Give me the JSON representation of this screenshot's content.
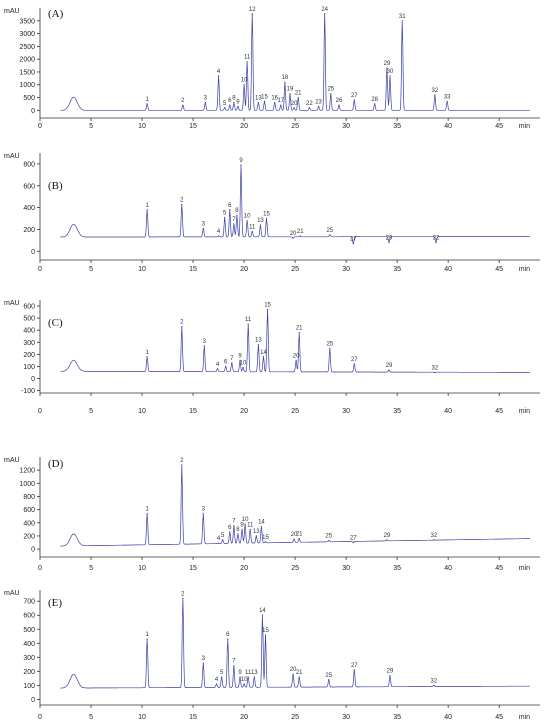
{
  "chart_data": [
    {
      "panel": "(A)",
      "type": "line",
      "ylabel": "mAU",
      "xlabel": "min",
      "xlim": [
        0,
        49
      ],
      "ylim": [
        -300,
        4000
      ],
      "xticks": [
        0,
        5,
        10,
        15,
        20,
        25,
        30,
        35,
        40,
        45
      ],
      "yticks": [
        0,
        500,
        1000,
        1500,
        2000,
        2500,
        3000,
        3500
      ],
      "baseline": 0,
      "baseline_slope": 0,
      "peaks": [
        {
          "label": "1",
          "x": 10.5,
          "y": 250
        },
        {
          "label": "2",
          "x": 14.0,
          "y": 200
        },
        {
          "label": "3",
          "x": 16.2,
          "y": 300
        },
        {
          "label": "4",
          "x": 17.5,
          "y": 1350
        },
        {
          "label": "5",
          "x": 18.1,
          "y": 100
        },
        {
          "label": "6",
          "x": 18.6,
          "y": 200
        },
        {
          "label": "8",
          "x": 19.0,
          "y": 300
        },
        {
          "label": "9",
          "x": 19.4,
          "y": 150
        },
        {
          "label": "10",
          "x": 20.0,
          "y": 1000
        },
        {
          "label": "11",
          "x": 20.3,
          "y": 1900
        },
        {
          "label": "12",
          "x": 20.8,
          "y": 3800
        },
        {
          "label": "13",
          "x": 21.4,
          "y": 300
        },
        {
          "label": "15",
          "x": 22.0,
          "y": 350
        },
        {
          "label": "16",
          "x": 23.0,
          "y": 300
        },
        {
          "label": "17",
          "x": 23.6,
          "y": 200
        },
        {
          "label": "18",
          "x": 24.0,
          "y": 1100
        },
        {
          "label": "19",
          "x": 24.5,
          "y": 650
        },
        {
          "label": "20",
          "x": 24.9,
          "y": 100
        },
        {
          "label": "21",
          "x": 25.3,
          "y": 500
        },
        {
          "label": "22",
          "x": 26.4,
          "y": 100
        },
        {
          "label": "23",
          "x": 27.3,
          "y": 150
        },
        {
          "label": "24",
          "x": 27.9,
          "y": 3800
        },
        {
          "label": "25",
          "x": 28.5,
          "y": 650
        },
        {
          "label": "26",
          "x": 29.3,
          "y": 200
        },
        {
          "label": "27",
          "x": 30.8,
          "y": 400
        },
        {
          "label": "28",
          "x": 32.8,
          "y": 250
        },
        {
          "label": "29",
          "x": 34.0,
          "y": 1650
        },
        {
          "label": "30",
          "x": 34.3,
          "y": 1350
        },
        {
          "label": "31",
          "x": 35.5,
          "y": 3500
        },
        {
          "label": "32",
          "x": 38.7,
          "y": 600
        },
        {
          "label": "33",
          "x": 39.9,
          "y": 350
        }
      ]
    },
    {
      "panel": "(B)",
      "type": "line",
      "ylabel": "mAU",
      "xlabel": "min",
      "xlim": [
        0,
        49
      ],
      "ylim": [
        -80,
        900
      ],
      "xticks": [
        0,
        5,
        10,
        15,
        20,
        25,
        30,
        35,
        40,
        45
      ],
      "yticks": [
        0,
        200,
        400,
        600,
        800
      ],
      "baseline": 130,
      "baseline_slope": 0.1,
      "peaks": [
        {
          "label": "1",
          "x": 10.5,
          "y": 380
        },
        {
          "label": "2",
          "x": 13.9,
          "y": 430
        },
        {
          "label": "3",
          "x": 16.0,
          "y": 210
        },
        {
          "label": "4",
          "x": 17.5,
          "y": 140
        },
        {
          "label": "5",
          "x": 18.1,
          "y": 310
        },
        {
          "label": "6",
          "x": 18.6,
          "y": 380
        },
        {
          "label": "7",
          "x": 19.0,
          "y": 250
        },
        {
          "label": "8",
          "x": 19.3,
          "y": 330
        },
        {
          "label": "9",
          "x": 19.7,
          "y": 790
        },
        {
          "label": "10",
          "x": 20.3,
          "y": 280
        },
        {
          "label": "11",
          "x": 20.8,
          "y": 180
        },
        {
          "label": "13",
          "x": 21.6,
          "y": 240
        },
        {
          "label": "15",
          "x": 22.2,
          "y": 300
        },
        {
          "label": "20",
          "x": 24.8,
          "y": 120
        },
        {
          "label": "21",
          "x": 25.5,
          "y": 140
        },
        {
          "label": "25",
          "x": 28.4,
          "y": 150
        },
        {
          "label": "27",
          "x": 30.7,
          "y": 70
        },
        {
          "label": "29",
          "x": 34.2,
          "y": 80
        },
        {
          "label": "32",
          "x": 38.8,
          "y": 80
        }
      ]
    },
    {
      "panel": "(C)",
      "type": "line",
      "ylabel": "mAU",
      "xlabel": "min",
      "xlim": [
        0,
        49
      ],
      "ylim": [
        -120,
        650
      ],
      "xticks": [
        0,
        5,
        10,
        15,
        20,
        25,
        30,
        35,
        40,
        45
      ],
      "yticks": [
        -100,
        0,
        100,
        200,
        300,
        400,
        500,
        600
      ],
      "baseline": 60,
      "baseline_slope": -0.2,
      "peaks": [
        {
          "label": "1",
          "x": 10.5,
          "y": 180
        },
        {
          "label": "2",
          "x": 13.9,
          "y": 430
        },
        {
          "label": "3",
          "x": 16.1,
          "y": 270
        },
        {
          "label": "4",
          "x": 17.4,
          "y": 80
        },
        {
          "label": "6",
          "x": 18.2,
          "y": 100
        },
        {
          "label": "7",
          "x": 18.8,
          "y": 130
        },
        {
          "label": "9",
          "x": 19.6,
          "y": 150
        },
        {
          "label": "10",
          "x": 19.9,
          "y": 90
        },
        {
          "label": "11",
          "x": 20.4,
          "y": 450
        },
        {
          "label": "13",
          "x": 21.4,
          "y": 280
        },
        {
          "label": "14",
          "x": 21.9,
          "y": 180
        },
        {
          "label": "15",
          "x": 22.3,
          "y": 570
        },
        {
          "label": "20",
          "x": 25.1,
          "y": 150
        },
        {
          "label": "21",
          "x": 25.4,
          "y": 380
        },
        {
          "label": "25",
          "x": 28.4,
          "y": 250
        },
        {
          "label": "27",
          "x": 30.8,
          "y": 120
        },
        {
          "label": "29",
          "x": 34.2,
          "y": 70
        },
        {
          "label": "32",
          "x": 38.7,
          "y": 50
        }
      ]
    },
    {
      "panel": "(D)",
      "type": "line",
      "ylabel": "mAU",
      "xlabel": "min",
      "xlim": [
        0,
        49
      ],
      "ylim": [
        -120,
        1400
      ],
      "xticks": [
        0,
        5,
        10,
        15,
        20,
        25,
        30,
        35,
        40,
        45
      ],
      "yticks": [
        0,
        200,
        400,
        600,
        800,
        1000,
        1200
      ],
      "baseline": 40,
      "baseline_slope": 2.5,
      "peaks": [
        {
          "label": "1",
          "x": 10.5,
          "y": 540
        },
        {
          "label": "2",
          "x": 13.9,
          "y": 1280
        },
        {
          "label": "3",
          "x": 16.0,
          "y": 540
        },
        {
          "label": "4",
          "x": 17.5,
          "y": 90
        },
        {
          "label": "5",
          "x": 17.9,
          "y": 140
        },
        {
          "label": "6",
          "x": 18.6,
          "y": 260
        },
        {
          "label": "7",
          "x": 19.0,
          "y": 360
        },
        {
          "label": "8",
          "x": 19.4,
          "y": 230
        },
        {
          "label": "9",
          "x": 19.8,
          "y": 300
        },
        {
          "label": "10",
          "x": 20.1,
          "y": 380
        },
        {
          "label": "11",
          "x": 20.6,
          "y": 300
        },
        {
          "label": "13",
          "x": 21.2,
          "y": 200
        },
        {
          "label": "14",
          "x": 21.7,
          "y": 340
        },
        {
          "label": "15",
          "x": 22.1,
          "y": 110
        },
        {
          "label": "20",
          "x": 24.9,
          "y": 150
        },
        {
          "label": "21",
          "x": 25.4,
          "y": 160
        },
        {
          "label": "25",
          "x": 28.3,
          "y": 130
        },
        {
          "label": "27",
          "x": 30.7,
          "y": 100
        },
        {
          "label": "29",
          "x": 34.0,
          "y": 140
        },
        {
          "label": "32",
          "x": 38.6,
          "y": 140
        }
      ]
    },
    {
      "panel": "(E)",
      "type": "line",
      "ylabel": "mAU",
      "xlabel": "min",
      "xlim": [
        0,
        49
      ],
      "ylim": [
        -40,
        780
      ],
      "xticks": [
        0,
        5,
        10,
        15,
        20,
        25,
        30,
        35,
        40,
        45
      ],
      "yticks": [
        0,
        100,
        200,
        300,
        400,
        500,
        600,
        700
      ],
      "baseline": 80,
      "baseline_slope": 0.3,
      "peaks": [
        {
          "label": "1",
          "x": 10.5,
          "y": 430
        },
        {
          "label": "2",
          "x": 14.0,
          "y": 720
        },
        {
          "label": "3",
          "x": 16.0,
          "y": 260
        },
        {
          "label": "4",
          "x": 17.3,
          "y": 110
        },
        {
          "label": "5",
          "x": 17.8,
          "y": 160
        },
        {
          "label": "6",
          "x": 18.4,
          "y": 430
        },
        {
          "label": "7",
          "x": 19.0,
          "y": 240
        },
        {
          "label": "9",
          "x": 19.6,
          "y": 160
        },
        {
          "label": "10",
          "x": 20.0,
          "y": 110
        },
        {
          "label": "11",
          "x": 20.4,
          "y": 160
        },
        {
          "label": "13",
          "x": 21.0,
          "y": 160
        },
        {
          "label": "14",
          "x": 21.8,
          "y": 600
        },
        {
          "label": "15",
          "x": 22.1,
          "y": 460
        },
        {
          "label": "20",
          "x": 24.8,
          "y": 180
        },
        {
          "label": "21",
          "x": 25.4,
          "y": 160
        },
        {
          "label": "25",
          "x": 28.3,
          "y": 140
        },
        {
          "label": "27",
          "x": 30.8,
          "y": 210
        },
        {
          "label": "29",
          "x": 34.3,
          "y": 170
        },
        {
          "label": "32",
          "x": 38.6,
          "y": 100
        }
      ]
    }
  ]
}
